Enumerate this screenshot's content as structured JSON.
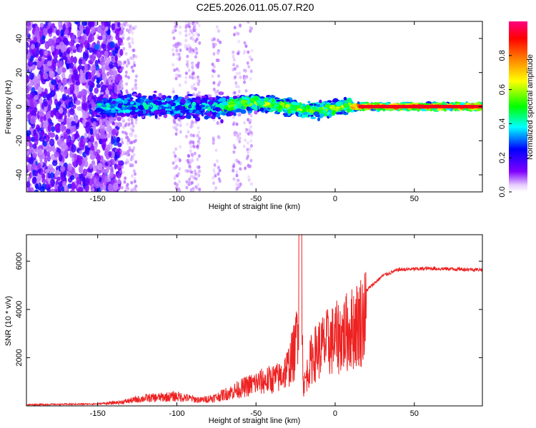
{
  "title": "C2E5.2026.011.05.07.R20",
  "chart_data": [
    {
      "type": "heatmap",
      "xlabel": "Height of straight line (km)",
      "ylabel": "Frequency (Hz)",
      "xlim": [
        -195,
        93
      ],
      "ylim": [
        -50,
        50
      ],
      "xticks": [
        -150,
        -100,
        -50,
        0,
        50
      ],
      "yticks": [
        -40,
        -20,
        0,
        20,
        40
      ],
      "colorbar": {
        "label": "Normalized spectral amplitude",
        "range": [
          0.0,
          1.0
        ],
        "ticks": [
          0.0,
          0.2,
          0.4,
          0.6,
          0.8
        ],
        "tick_labels": [
          "0.0",
          "0.2",
          "0.4",
          "0.6",
          "0.8"
        ],
        "colormap": [
          "#ffffff",
          "#7f00ff",
          "#0000ff",
          "#00ffff",
          "#00ff00",
          "#ffff00",
          "#ff8000",
          "#ff0000",
          "#ff0080"
        ]
      },
      "description_points": [
        {
          "x_range": [
            -195,
            -145
          ],
          "freq_spread_hz": 50,
          "amplitude": 0.15
        },
        {
          "x_range": [
            -145,
            -70
          ],
          "freq_center_hz": 0,
          "freq_spread_hz": 8,
          "amplitude": 0.4
        },
        {
          "x_range": [
            -70,
            10
          ],
          "freq_center_hz": 2,
          "freq_spread_hz": 5,
          "amplitude": 0.6
        },
        {
          "x_range": [
            10,
            93
          ],
          "freq_center_hz": 0,
          "freq_spread_hz": 2,
          "amplitude": 0.9
        }
      ]
    },
    {
      "type": "line",
      "xlabel": "Height of straight line (km)",
      "ylabel": "SNR (10 * v/v)",
      "xlim": [
        -195,
        93
      ],
      "ylim": [
        0,
        7100
      ],
      "xticks": [
        -150,
        -100,
        -50,
        0,
        50
      ],
      "yticks": [
        2000,
        4000,
        6000
      ],
      "color": "#ee2222",
      "series_envelope": {
        "x": [
          -195,
          -150,
          -135,
          -120,
          -100,
          -85,
          -75,
          -60,
          -50,
          -40,
          -35,
          -30,
          -25,
          -22,
          -20,
          -15,
          -10,
          -5,
          0,
          10,
          20,
          30,
          40,
          60,
          93
        ],
        "y": [
          50,
          80,
          200,
          400,
          500,
          300,
          450,
          900,
          1200,
          1400,
          1500,
          2000,
          3000,
          7100,
          1000,
          2500,
          3000,
          3300,
          3500,
          4000,
          4800,
          5400,
          5650,
          5700,
          5650
        ]
      }
    }
  ]
}
